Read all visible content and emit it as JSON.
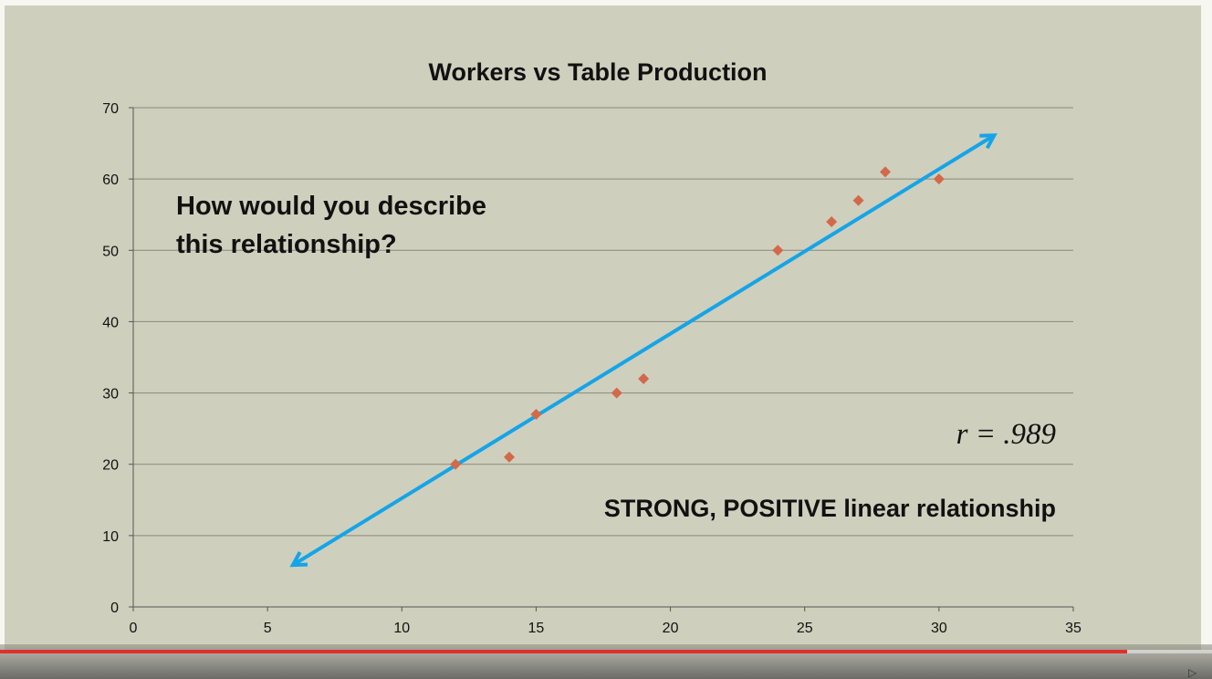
{
  "chart_data": {
    "type": "scatter",
    "title": "Workers vs Table Production",
    "xlabel": "",
    "ylabel": "",
    "xlim": [
      0,
      35
    ],
    "ylim": [
      0,
      70
    ],
    "x_ticks": [
      0,
      5,
      10,
      15,
      20,
      25,
      30,
      35
    ],
    "y_ticks": [
      0,
      10,
      20,
      30,
      40,
      50,
      60,
      70
    ],
    "grid": "horizontal",
    "points": [
      {
        "x": 12,
        "y": 20
      },
      {
        "x": 14,
        "y": 21
      },
      {
        "x": 15,
        "y": 27
      },
      {
        "x": 18,
        "y": 30
      },
      {
        "x": 19,
        "y": 32
      },
      {
        "x": 24,
        "y": 50
      },
      {
        "x": 26,
        "y": 54
      },
      {
        "x": 27,
        "y": 57
      },
      {
        "x": 28,
        "y": 61
      },
      {
        "x": 30,
        "y": 60
      }
    ],
    "trendline": {
      "from": {
        "x": 6,
        "y": 6
      },
      "to": {
        "x": 32,
        "y": 66
      },
      "arrows": "both"
    },
    "marker_color": "#d2694a",
    "trendline_color": "#15a4e8",
    "annotations": {
      "question_lines": [
        "How would you describe",
        "this relationship?"
      ],
      "r_value": "r = .989",
      "conclusion": "STRONG, POSITIVE linear relationship"
    }
  },
  "player": {
    "progress": 0.93,
    "progress_color": "#e0302a"
  }
}
